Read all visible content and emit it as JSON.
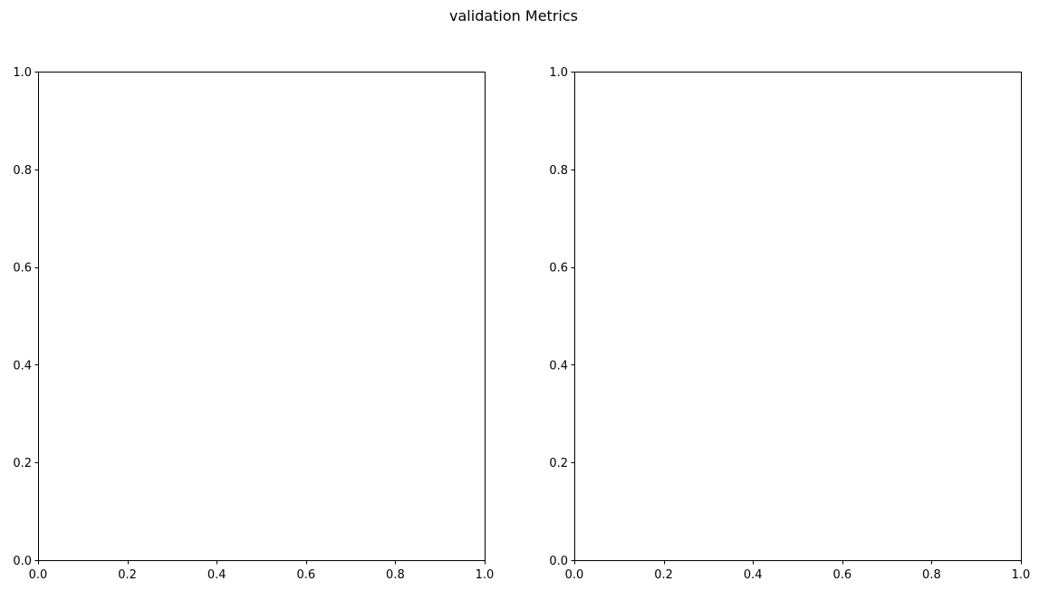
{
  "figure": {
    "title": "validation Metrics"
  },
  "chart_data": [
    {
      "type": "line",
      "title": "",
      "xlabel": "",
      "ylabel": "",
      "xlim": [
        0,
        1
      ],
      "ylim": [
        0,
        1
      ],
      "xticks": [
        0.0,
        0.2,
        0.4,
        0.6,
        0.8,
        1.0
      ],
      "yticks": [
        0.0,
        0.2,
        0.4,
        0.6,
        0.8,
        1.0
      ],
      "xtick_labels": [
        "0.0",
        "0.2",
        "0.4",
        "0.6",
        "0.8",
        "1.0"
      ],
      "ytick_labels": [
        "0.0",
        "0.2",
        "0.4",
        "0.6",
        "0.8",
        "1.0"
      ],
      "grid": false,
      "series": []
    },
    {
      "type": "line",
      "title": "",
      "xlabel": "",
      "ylabel": "",
      "xlim": [
        0,
        1
      ],
      "ylim": [
        0,
        1
      ],
      "xticks": [
        0.0,
        0.2,
        0.4,
        0.6,
        0.8,
        1.0
      ],
      "yticks": [
        0.0,
        0.2,
        0.4,
        0.6,
        0.8,
        1.0
      ],
      "xtick_labels": [
        "0.0",
        "0.2",
        "0.4",
        "0.6",
        "0.8",
        "1.0"
      ],
      "ytick_labels": [
        "0.0",
        "0.2",
        "0.4",
        "0.6",
        "0.8",
        "1.0"
      ],
      "grid": false,
      "series": []
    }
  ]
}
